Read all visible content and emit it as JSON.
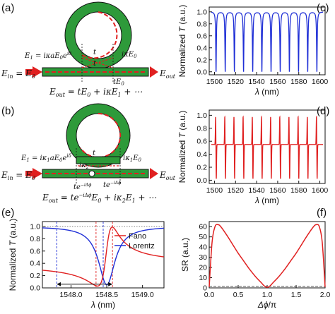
{
  "panels": {
    "a": "(a)",
    "b": "(b)",
    "c": "(c)",
    "d": "(d)",
    "e": "(e)",
    "f": "(f)"
  },
  "diagram_a": {
    "e1": "E₁ = iκaE₀e^{iδ}",
    "e1_main": "E",
    "e1_sub": "1",
    "e1_rest": " = iκaE",
    "e1_sub0": "0",
    "e1_exp": "e",
    "e1_exp_sup": "iδ",
    "ike0": "iκE",
    "ike0_sub": "0",
    "t1": "t",
    "t2": "t",
    "te0": "tE",
    "te0_sub": "0",
    "ein": "E",
    "ein_sub": "in",
    "ein_rest": " = E",
    "ein_sub0": "0",
    "eout": "E",
    "eout_sub": "out",
    "out_eq": "E",
    "out_eq_sub": "out",
    "out_eq_rest1": " = tE",
    "out_eq_sub0": "0",
    "out_eq_rest2": " + iκE",
    "out_eq_sub1": "1",
    "out_eq_rest3": " + ⋯"
  },
  "diagram_b": {
    "e1_main": "E",
    "e1_sub": "1",
    "e1_rest": " = iκ",
    "e1_sub1": "1",
    "e1_rest2": "aE",
    "e1_sub0": "0",
    "e1_exp": "e",
    "e1_exp_sup": "iδ",
    "ik1e0": "iκ",
    "ik1e0_sub": "1",
    "ik1e0_rest": "E",
    "ik1e0_sub0": "0",
    "t": "t",
    "ik2": "iκ",
    "ik2_sub": "2",
    "phase1": "te",
    "phase1_sup": "−iΔϕ",
    "phase2": "te",
    "phase2_sup": "−iΔϕ",
    "ein": "E",
    "ein_sub": "in",
    "ein_rest": " = E",
    "ein_sub0": "0",
    "eout": "E",
    "eout_sub": "out",
    "out_eq": "E",
    "out_eq_sub": "out",
    "out_eq_rest1": " = te",
    "out_eq_sup": "−iΔϕ",
    "out_eq_rest2": "E",
    "out_eq_sub0": "0",
    "out_eq_rest3": " + iκ",
    "out_eq_sub2": "2",
    "out_eq_rest4": "E",
    "out_eq_sub1": "1",
    "out_eq_rest5": " + ⋯"
  },
  "chart_data": [
    {
      "id": "c",
      "type": "line",
      "color": "#1f2fd6",
      "xlabel": "λ (nm)",
      "ylabel": "Normalized T (a.u.)",
      "xlim": [
        1495,
        1605
      ],
      "ylim": [
        -0.05,
        1.08
      ],
      "xticks": [
        1500,
        1520,
        1540,
        1560,
        1580,
        1600
      ],
      "yticks": [
        0.0,
        0.2,
        0.4,
        0.6,
        0.8,
        1.0
      ],
      "ytick_labels": [
        "0.0",
        "0.2",
        "0.4",
        "0.6",
        "0.8",
        "1.0"
      ],
      "resonances": [
        1501.5,
        1510.2,
        1518.9,
        1527.6,
        1536.3,
        1545.0,
        1553.7,
        1562.4,
        1571.1,
        1579.8,
        1588.5,
        1597.2
      ],
      "baseline": 1.0,
      "dip_min": 0.0,
      "line_shape": "lorentz"
    },
    {
      "id": "d",
      "type": "line",
      "color": "#e02020",
      "xlabel": "λ (nm)",
      "ylabel": "Normalized T (a.u.)",
      "xlim": [
        1495,
        1605
      ],
      "ylim": [
        -0.05,
        1.08
      ],
      "xticks": [
        1500,
        1520,
        1540,
        1560,
        1580,
        1600
      ],
      "yticks": [
        0.0,
        0.2,
        0.4,
        0.6,
        0.8,
        1.0
      ],
      "ytick_labels": [
        "0.0",
        "0.2",
        "0.4",
        "0.6",
        "0.8",
        "1.0"
      ],
      "resonances": [
        1501.5,
        1510.2,
        1518.9,
        1527.6,
        1536.3,
        1545.0,
        1553.7,
        1562.4,
        1571.1,
        1579.8,
        1588.5,
        1597.2
      ],
      "baseline": 0.55,
      "peak_max": 1.0,
      "dip_min": 0.0,
      "line_shape": "fano"
    },
    {
      "id": "e",
      "type": "line",
      "xlabel": "λ (nm)",
      "ylabel": "Normalized T (a.u.)",
      "xlim": [
        1547.6,
        1549.3
      ],
      "ylim": [
        0.0,
        1.08
      ],
      "xticks": [
        1548.0,
        1548.5,
        1549.0
      ],
      "xtick_labels": [
        "1548.0",
        "1548.5",
        "1549.0"
      ],
      "yticks": [
        0.0,
        0.2,
        0.4,
        0.6,
        0.8,
        1.0
      ],
      "ytick_labels": [
        "0.0",
        "0.2",
        "0.4",
        "0.6",
        "0.8",
        "1.0"
      ],
      "series": [
        {
          "name": "Fano",
          "color": "#e02020",
          "center": 1548.5,
          "width": 0.1,
          "peak": 1.0,
          "baseline": 0.7,
          "dip": 0.02
        },
        {
          "name": "Lorentz",
          "color": "#1f2fd6",
          "center": 1548.5,
          "width": 0.14,
          "baseline": 1.0,
          "dip": 0.05
        }
      ],
      "markers": {
        "red_dashed": [
          1548.35,
          1548.58
        ],
        "blue_dashed": [
          1547.8,
          1548.45
        ],
        "dotted_level": 1.0,
        "arrow_span": [
          1547.8,
          1548.58
        ],
        "arrow_y": 0.06
      },
      "legend_position": "right"
    },
    {
      "id": "f",
      "type": "line",
      "xlabel": "Δϕ/π",
      "ylabel": "SR (a.u.)",
      "xlim": [
        0.0,
        2.0
      ],
      "ylim": [
        0,
        65
      ],
      "xticks": [
        0.0,
        0.5,
        1.0,
        1.5,
        2.0
      ],
      "xtick_labels": [
        "0.0",
        "0.5",
        "1.0",
        "1.5",
        "2.0"
      ],
      "yticks": [
        0,
        10,
        20,
        30,
        40,
        50,
        60
      ],
      "ytick_labels": [
        "0",
        "10",
        "20",
        "30",
        "40",
        "50",
        "60"
      ],
      "series": [
        {
          "name": "",
          "color": "#e02020",
          "x": [
            0.0,
            0.05,
            0.1,
            0.15,
            0.2,
            0.3,
            0.4,
            0.5,
            0.6,
            0.7,
            0.8,
            0.9,
            0.95,
            1.0,
            1.05,
            1.1,
            1.2,
            1.3,
            1.4,
            1.5,
            1.6,
            1.7,
            1.8,
            1.85,
            1.9,
            1.95,
            2.0
          ],
          "y": [
            1,
            45,
            60,
            62,
            60,
            52,
            43,
            34,
            26,
            18,
            11,
            5,
            2,
            0.5,
            2,
            5,
            11,
            18,
            26,
            34,
            43,
            52,
            60,
            62,
            60,
            45,
            1
          ]
        }
      ],
      "dashed_level": 1.5
    }
  ]
}
